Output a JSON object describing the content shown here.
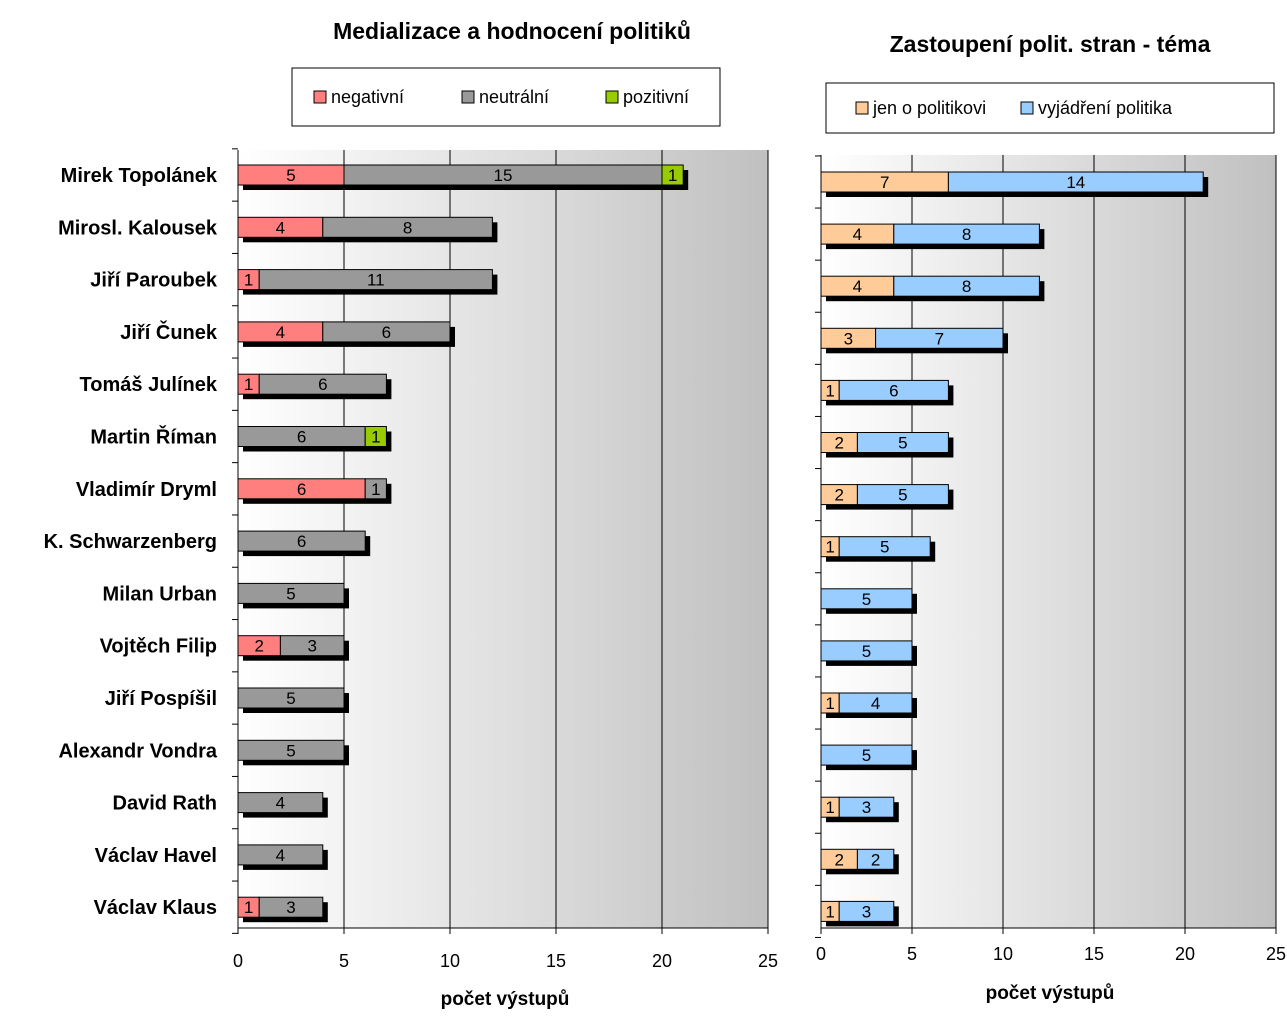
{
  "categories": [
    "Mirek Topolánek",
    "Mirosl. Kalousek",
    "Jiří Paroubek",
    "Jiří Čunek",
    "Tomáš Julínek",
    "Martin Říman",
    "Vladimír Dryml",
    "K. Schwarzenberg",
    "Milan Urban",
    "Vojtěch Filip",
    "Jiří Pospíšil",
    "Alexandr Vondra",
    "David Rath",
    "Václav Havel",
    "Václav Klaus"
  ],
  "chart_data": [
    {
      "type": "bar",
      "orientation": "horizontal",
      "stacked": true,
      "title": "Medializace a hodnocení politiků",
      "xlabel": "počet výstupů",
      "xlim": [
        0,
        25
      ],
      "xticks": [
        "0",
        "5",
        "10",
        "15",
        "20",
        "25"
      ],
      "grid": true,
      "legend_position": "top",
      "series": [
        {
          "name": "negativní",
          "color": "#ff7f7f",
          "values": [
            5,
            4,
            1,
            4,
            1,
            0,
            6,
            0,
            0,
            2,
            0,
            0,
            0,
            0,
            1
          ]
        },
        {
          "name": "neutrální",
          "color": "#999999",
          "values": [
            15,
            8,
            11,
            6,
            6,
            6,
            1,
            6,
            5,
            3,
            5,
            5,
            4,
            4,
            3
          ]
        },
        {
          "name": "pozitivní",
          "color": "#99cc00",
          "values": [
            1,
            0,
            0,
            0,
            0,
            1,
            0,
            0,
            0,
            0,
            0,
            0,
            0,
            0,
            0
          ]
        }
      ]
    },
    {
      "type": "bar",
      "orientation": "horizontal",
      "stacked": true,
      "title": "Zastoupení polit. stran - téma",
      "xlabel": "počet výstupů",
      "xlim": [
        0,
        25
      ],
      "xticks": [
        "0",
        "5",
        "10",
        "15",
        "20",
        "25"
      ],
      "grid": true,
      "legend_position": "top",
      "series": [
        {
          "name": "jen o politikovi",
          "color": "#ffcc99",
          "values": [
            7,
            4,
            4,
            3,
            1,
            2,
            2,
            1,
            0,
            0,
            1,
            0,
            1,
            2,
            1
          ]
        },
        {
          "name": "vyjádření politika",
          "color": "#99ccff",
          "values": [
            14,
            8,
            8,
            7,
            6,
            5,
            5,
            5,
            5,
            5,
            4,
            5,
            3,
            2,
            3
          ]
        }
      ]
    }
  ]
}
